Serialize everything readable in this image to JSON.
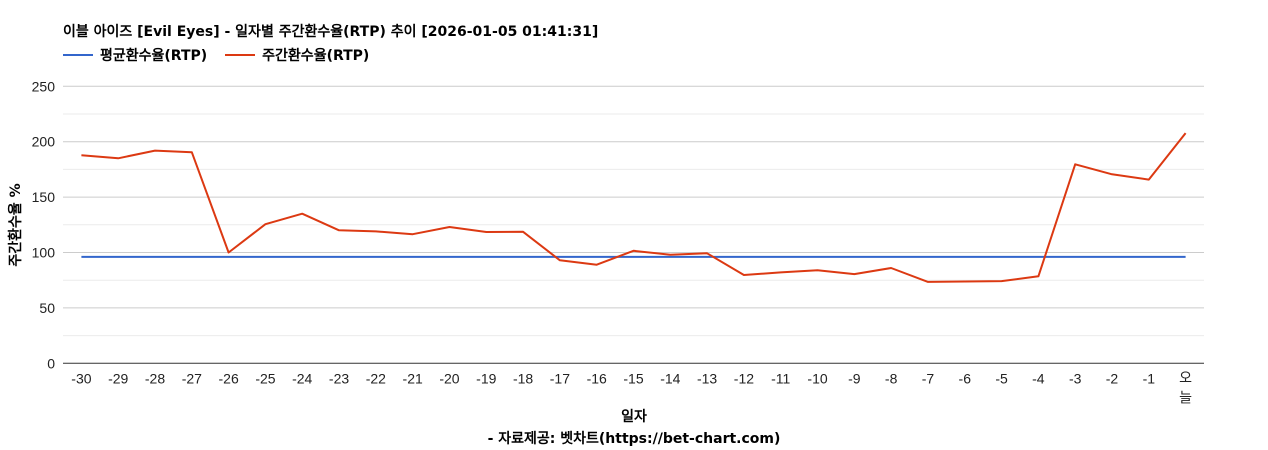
{
  "header": {
    "title": "이블 아이즈 [Evil Eyes] - 일자별 주간환수율(RTP) 추이 [2026-01-05 01:41:31]"
  },
  "legend": {
    "items": [
      {
        "label": "평균환수율(RTP)",
        "color": "#3366cc"
      },
      {
        "label": "주간환수율(RTP)",
        "color": "#dc3912"
      }
    ]
  },
  "footer": {
    "xlabel": "일자",
    "source": "- 자료제공: 벳차트(https://bet-chart.com)"
  },
  "yaxis": {
    "label": "주간환수율 %"
  },
  "chart_data": {
    "type": "line",
    "title": "이블 아이즈 [Evil Eyes] - 일자별 주간환수율(RTP) 추이 [2026-01-05 01:41:31]",
    "xlabel": "일자",
    "ylabel": "주간환수율 %",
    "ylim": [
      0,
      250
    ],
    "yticks": [
      0,
      50,
      100,
      150,
      200,
      250
    ],
    "grid": true,
    "legend_position": "top",
    "categories": [
      "-30",
      "-29",
      "-28",
      "-27",
      "-26",
      "-25",
      "-24",
      "-23",
      "-22",
      "-21",
      "-20",
      "-19",
      "-18",
      "-17",
      "-16",
      "-15",
      "-14",
      "-13",
      "-12",
      "-11",
      "-10",
      "-9",
      "-8",
      "-7",
      "-6",
      "-5",
      "-4",
      "-3",
      "-2",
      "-1",
      "오늘"
    ],
    "series": [
      {
        "name": "평균환수율(RTP)",
        "color": "#3366cc",
        "values": [
          96,
          96,
          96,
          96,
          96,
          96,
          96,
          96,
          96,
          96,
          96,
          96,
          96,
          96,
          96,
          96,
          96,
          96,
          96,
          96,
          96,
          96,
          96,
          96,
          96,
          96,
          96,
          96,
          96,
          96,
          96
        ]
      },
      {
        "name": "주간환수율(RTP)",
        "color": "#dc3912",
        "values": [
          187.7,
          185,
          192,
          190.5,
          100,
          125.5,
          135,
          120,
          119,
          116.5,
          123,
          118.5,
          118.7,
          93,
          89,
          101.5,
          98,
          99.3,
          79.7,
          82,
          84,
          80.5,
          86,
          73.5,
          73.8,
          74.2,
          78.5,
          179.6,
          170.6,
          165.8,
          207.8
        ]
      }
    ]
  }
}
